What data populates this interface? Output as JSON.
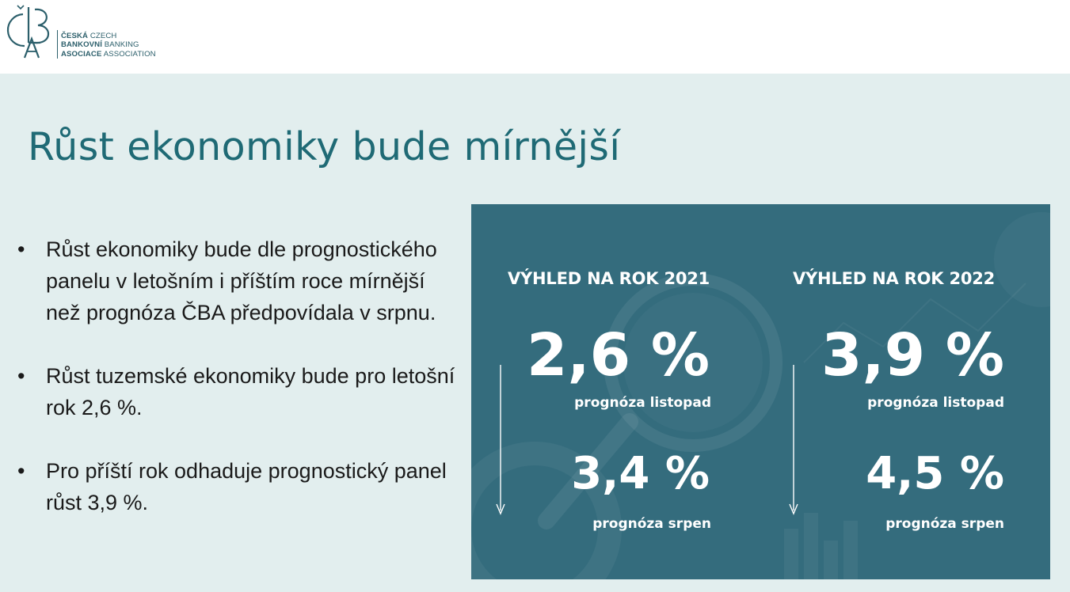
{
  "logo": {
    "line1_bold": "ČESKÁ",
    "line1_light": "CZECH",
    "line2_bold": "BANKOVNÍ",
    "line2_light": "BANKING",
    "line3_bold": "ASOCIACE",
    "line3_light": "ASSOCIATION"
  },
  "title": "Růst ekonomiky bude mírnější",
  "bullets": [
    {
      "marker": "•",
      "text": "Růst ekonomiky bude dle prognostického panelu v letošním i příštím roce mírnější než prognóza ČBA předpovídala v srpnu."
    },
    {
      "marker": "•",
      "text": "Růst tuzemské ekonomiky bude pro letošní rok 2,6 %."
    },
    {
      "marker": "•",
      "text": "Pro příští rok odhaduje prognostický panel růst 3,9 %."
    }
  ],
  "outlook": [
    {
      "heading": "VÝHLED NA ROK 2021",
      "november_value": "2,6 %",
      "november_label": "prognóza listopad",
      "august_value": "3,4 %",
      "august_label": "prognóza srpen"
    },
    {
      "heading": "VÝHLED NA ROK 2022",
      "november_value": "3,9 %",
      "november_label": "prognóza listopad",
      "august_value": "4,5 %",
      "august_label": "prognóza srpen"
    }
  ],
  "colors": {
    "title": "#1f6a75",
    "slide_background": "#e2eeee",
    "panel_background": "#346c7d",
    "panel_text": "#ffffff"
  },
  "icons": [
    "cba-logo",
    "magnifier-background",
    "down-arrow-icon"
  ]
}
